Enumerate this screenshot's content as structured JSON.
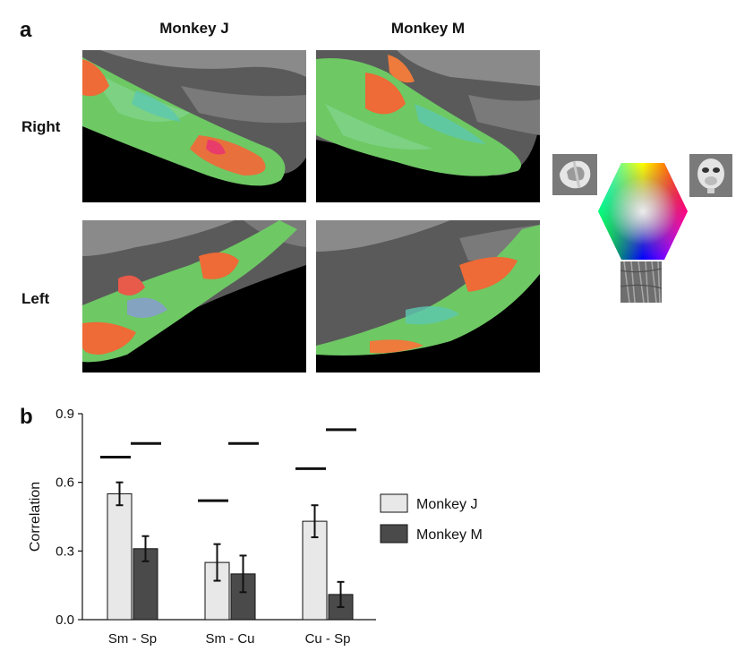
{
  "panel_a": {
    "letter": "a",
    "columns": [
      "Monkey J",
      "Monkey M"
    ],
    "rows": [
      "Right",
      "Left"
    ],
    "legend_colors": {
      "top_left_vertex": "#ffff00",
      "top_right_vertex": "#ff0000",
      "right_vertex": "#ff00ff",
      "bottom_vertex": "#0000ff",
      "left_vertex": "#00ffff",
      "bottom_left_vertex": "#00ff00"
    },
    "stimulus_icons": [
      "object-shape-icon",
      "monkey-face-icon",
      "texture-patch-icon"
    ]
  },
  "panel_b": {
    "letter": "b",
    "chart_data": {
      "type": "bar",
      "categories": [
        "Sm - Sp",
        "Sm - Cu",
        "Cu - Sp"
      ],
      "series": [
        {
          "name": "Monkey J",
          "color": "#e8e8e8",
          "values": [
            0.55,
            0.25,
            0.43
          ],
          "errors": [
            0.05,
            0.08,
            0.07
          ]
        },
        {
          "name": "Monkey M",
          "color": "#4a4a4a",
          "values": [
            0.31,
            0.2,
            0.11
          ],
          "errors": [
            0.055,
            0.08,
            0.055
          ]
        }
      ],
      "ylabel": "Correlation",
      "ylim": [
        0,
        0.9
      ],
      "yticks": [
        "0.0",
        "0.3",
        "0.6",
        "0.9"
      ],
      "ytick_values": [
        0,
        0.3,
        0.6,
        0.9
      ],
      "reference_lines": [
        {
          "category": "Sm - Sp",
          "series": "Monkey J",
          "value": 0.71
        },
        {
          "category": "Sm - Sp",
          "series": "Monkey M",
          "value": 0.77
        },
        {
          "category": "Sm - Cu",
          "series": "Monkey J",
          "value": 0.52
        },
        {
          "category": "Sm - Cu",
          "series": "Monkey M",
          "value": 0.77
        },
        {
          "category": "Cu - Sp",
          "series": "Monkey J",
          "value": 0.66
        },
        {
          "category": "Cu - Sp",
          "series": "Monkey M",
          "value": 0.83
        }
      ],
      "legend_position": "right"
    }
  }
}
